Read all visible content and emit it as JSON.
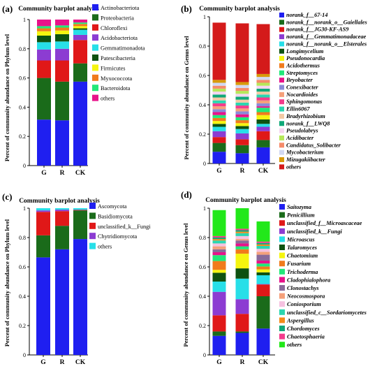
{
  "figure": {
    "panels": [
      {
        "tag": "(a)",
        "title": "Community barplot analysis",
        "ylabel": "Percent of community abundance on Phylum level"
      },
      {
        "tag": "(b)",
        "title": "Community barplot analysis",
        "ylabel": "Percent of community abundance on Genus level"
      },
      {
        "tag": "(c)",
        "title": "Community barplot analysis",
        "ylabel": "Percent of community abundance on Phylum level"
      },
      {
        "tag": "(d)",
        "title": "Community barplot analysis",
        "ylabel": "Percent of community abundance on Genus level"
      }
    ]
  },
  "chart_data": [
    {
      "type": "bar",
      "stacked": true,
      "title": "Community barplot analysis",
      "ylabel": "Percent of community abundance on Phylum level",
      "ylim": [
        0,
        1
      ],
      "yticks": [
        "0",
        "0.2",
        "0.4",
        "0.6",
        "0.8",
        "1"
      ],
      "categories": [
        "G",
        "R",
        "CK"
      ],
      "legend_italic": false,
      "legend_placement": "right",
      "series": [
        {
          "name": "Actinobacteriota",
          "color": "#1f1ff0",
          "values": [
            0.315,
            0.31,
            0.575
          ]
        },
        {
          "name": "Proteobacteria",
          "color": "#1a6b1a",
          "values": [
            0.285,
            0.265,
            0.125
          ]
        },
        {
          "name": "Chloroflexi",
          "color": "#e01818",
          "values": [
            0.12,
            0.145,
            0.16
          ]
        },
        {
          "name": "Acidobacteriota",
          "color": "#8c3cd2",
          "values": [
            0.075,
            0.08,
            0.035
          ]
        },
        {
          "name": "Gemmatimonadota",
          "color": "#27dfe8",
          "values": [
            0.05,
            0.05,
            0.035
          ]
        },
        {
          "name": "Patescibacteria",
          "color": "#0e5210",
          "values": [
            0.045,
            0.05,
            0.01
          ]
        },
        {
          "name": "Firmicutes",
          "color": "#f5f50f",
          "values": [
            0.03,
            0.025,
            0.015
          ]
        },
        {
          "name": "Myxococcota",
          "color": "#f07b1c",
          "values": [
            0.02,
            0.02,
            0.015
          ]
        },
        {
          "name": "Bacteroidota",
          "color": "#22e878",
          "values": [
            0.015,
            0.015,
            0.01
          ]
        },
        {
          "name": "others",
          "color": "#e8128a",
          "values": [
            0.045,
            0.04,
            0.02
          ]
        }
      ]
    },
    {
      "type": "bar",
      "stacked": true,
      "title": "Community barplot analysis",
      "ylabel": "Percent of community abundance on Genus level",
      "ylim": [
        0,
        1
      ],
      "yticks": [
        "0",
        "0.2",
        "0.4",
        "0.6",
        "0.8",
        "1"
      ],
      "categories": [
        "G",
        "R",
        "CK"
      ],
      "legend_italic": true,
      "legend_placement": "right",
      "series": [
        {
          "name": "norank_f__67-14",
          "color": "#1f1ff0",
          "values": [
            0.08,
            0.07,
            0.11
          ]
        },
        {
          "name": "norank_f__norank_o__Gaiellales",
          "color": "#1a6b1a",
          "values": [
            0.06,
            0.055,
            0.05
          ]
        },
        {
          "name": "norank_f__JG30-KF-AS9",
          "color": "#e01818",
          "values": [
            0.04,
            0.04,
            0.06
          ]
        },
        {
          "name": "norank_f__Gemmatimonadaceae",
          "color": "#8c3cd2",
          "values": [
            0.04,
            0.04,
            0.03
          ]
        },
        {
          "name": "norank_f__norank_o__Elsterales",
          "color": "#27dfe8",
          "values": [
            0.03,
            0.03,
            0.02
          ]
        },
        {
          "name": "Longimycelium",
          "color": "#0e5210",
          "values": [
            0.02,
            0.02,
            0.03
          ]
        },
        {
          "name": "Pseudonocardia",
          "color": "#f5f50f",
          "values": [
            0.02,
            0.02,
            0.03
          ]
        },
        {
          "name": "Acidothermus",
          "color": "#f07b1c",
          "values": [
            0.02,
            0.02,
            0.02
          ]
        },
        {
          "name": "Streptomyces",
          "color": "#22e878",
          "values": [
            0.02,
            0.02,
            0.03
          ]
        },
        {
          "name": "Bryobacter",
          "color": "#e8128a",
          "values": [
            0.02,
            0.02,
            0.01
          ]
        },
        {
          "name": "Conexibacter",
          "color": "#8a8ad8",
          "values": [
            0.02,
            0.02,
            0.02
          ]
        },
        {
          "name": "Nocardioides",
          "color": "#f5a07a",
          "values": [
            0.02,
            0.02,
            0.02
          ]
        },
        {
          "name": "Sphingomonas",
          "color": "#f33c8c",
          "values": [
            0.02,
            0.02,
            0.02
          ]
        },
        {
          "name": "Ellin6067",
          "color": "#2bd6b0",
          "values": [
            0.02,
            0.02,
            0.02
          ]
        },
        {
          "name": "Bradyrhizobium",
          "color": "#f2c9a4",
          "values": [
            0.02,
            0.02,
            0.02
          ]
        },
        {
          "name": "norank_f__LWQ8",
          "color": "#10a878",
          "values": [
            0.02,
            0.02,
            0.02
          ]
        },
        {
          "name": "Pseudolabrys",
          "color": "#f5d5f0",
          "values": [
            0.02,
            0.02,
            0.02
          ]
        },
        {
          "name": "Acidibacter",
          "color": "#b6e85a",
          "values": [
            0.02,
            0.02,
            0.02
          ]
        },
        {
          "name": "Candidatus_Solibacter",
          "color": "#f58b6a",
          "values": [
            0.02,
            0.02,
            0.02
          ]
        },
        {
          "name": "Mycobacterium",
          "color": "#d2d8f2",
          "values": [
            0.02,
            0.02,
            0.02
          ]
        },
        {
          "name": "Mizugakiibacter",
          "color": "#d89a0a",
          "values": [
            0.02,
            0.02,
            0.02
          ]
        },
        {
          "name": "others",
          "color": "#d41a1a",
          "values": [
            0.39,
            0.4,
            0.34
          ]
        }
      ]
    },
    {
      "type": "bar",
      "stacked": true,
      "title": "Community barplot analysis",
      "ylabel": "Percent of community abundance on Phylum level",
      "ylim": [
        0,
        1
      ],
      "yticks": [
        "0",
        "0.2",
        "0.4",
        "0.6",
        "0.8",
        "1"
      ],
      "categories": [
        "G",
        "R",
        "CK"
      ],
      "legend_italic": false,
      "legend_placement": "right",
      "series": [
        {
          "name": "Ascomycota",
          "color": "#1f1ff0",
          "values": [
            0.665,
            0.72,
            0.79
          ]
        },
        {
          "name": "Basidiomycota",
          "color": "#1a6b1a",
          "values": [
            0.15,
            0.16,
            0.195
          ]
        },
        {
          "name": "unclassified_k__Fungi",
          "color": "#e01818",
          "values": [
            0.16,
            0.1,
            0.003
          ]
        },
        {
          "name": "Chytridiomycota",
          "color": "#8c3cd2",
          "values": [
            0.01,
            0.01,
            0.002
          ]
        },
        {
          "name": "others",
          "color": "#27dfe8",
          "values": [
            0.015,
            0.01,
            0.01
          ]
        }
      ]
    },
    {
      "type": "bar",
      "stacked": true,
      "title": "Community barplot analysis",
      "ylabel": "Percent of community abundance on Genus level",
      "ylim": [
        0,
        1
      ],
      "yticks": [
        "0",
        "0.2",
        "0.4",
        "0.6",
        "0.8",
        "1"
      ],
      "categories": [
        "G",
        "R",
        "CK"
      ],
      "legend_italic": true,
      "legend_placement": "right",
      "series": [
        {
          "name": "Saitozyma",
          "color": "#1f1ff0",
          "values": [
            0.13,
            0.15,
            0.18
          ]
        },
        {
          "name": "Penicillium",
          "color": "#1a6b1a",
          "values": [
            0.03,
            0.01,
            0.22
          ]
        },
        {
          "name": "unclassified_f__Microascaceae",
          "color": "#e01818",
          "values": [
            0.11,
            0.12,
            0.08
          ]
        },
        {
          "name": "unclassified_k__Fungi",
          "color": "#8c3cd2",
          "values": [
            0.16,
            0.1,
            0.003
          ]
        },
        {
          "name": "Microascus",
          "color": "#27dfe8",
          "values": [
            0.07,
            0.14,
            0.06
          ]
        },
        {
          "name": "Talaromyces",
          "color": "#0e5210",
          "values": [
            0.06,
            0.07,
            0.02
          ]
        },
        {
          "name": "Chaetomium",
          "color": "#f5f50f",
          "values": [
            0.02,
            0.1,
            0.02
          ]
        },
        {
          "name": "Fusarium",
          "color": "#f07b1c",
          "values": [
            0.06,
            0.03,
            0.02
          ]
        },
        {
          "name": "Trichoderma",
          "color": "#22e878",
          "values": [
            0.04,
            0.02,
            0.02
          ]
        },
        {
          "name": "Cladophialophora",
          "color": "#e8128a",
          "values": [
            0.02,
            0.02,
            0.02
          ]
        },
        {
          "name": "Clonostachys",
          "color": "#8a6a9a",
          "values": [
            0.02,
            0.02,
            0.04
          ]
        },
        {
          "name": "Neocosmospora",
          "color": "#f5a07a",
          "values": [
            0.02,
            0.01,
            0.02
          ]
        },
        {
          "name": "Coniosporium",
          "color": "#f5c1e0",
          "values": [
            0.02,
            0.02,
            0.02
          ]
        },
        {
          "name": "unclassified_c__Sordariomycetes",
          "color": "#2bd6b0",
          "values": [
            0.02,
            0.02,
            0.02
          ]
        },
        {
          "name": "Aspergillus",
          "color": "#f58b1a",
          "values": [
            0.01,
            0.01,
            0.01
          ]
        },
        {
          "name": "Chordomyces",
          "color": "#10a878",
          "values": [
            0.01,
            0.01,
            0.01
          ]
        },
        {
          "name": "Chaetosphaeria",
          "color": "#f33c8c",
          "values": [
            0.01,
            0.01,
            0.01
          ]
        },
        {
          "name": "others",
          "color": "#22e81a",
          "values": [
            0.177,
            0.14,
            0.137
          ]
        }
      ]
    }
  ]
}
